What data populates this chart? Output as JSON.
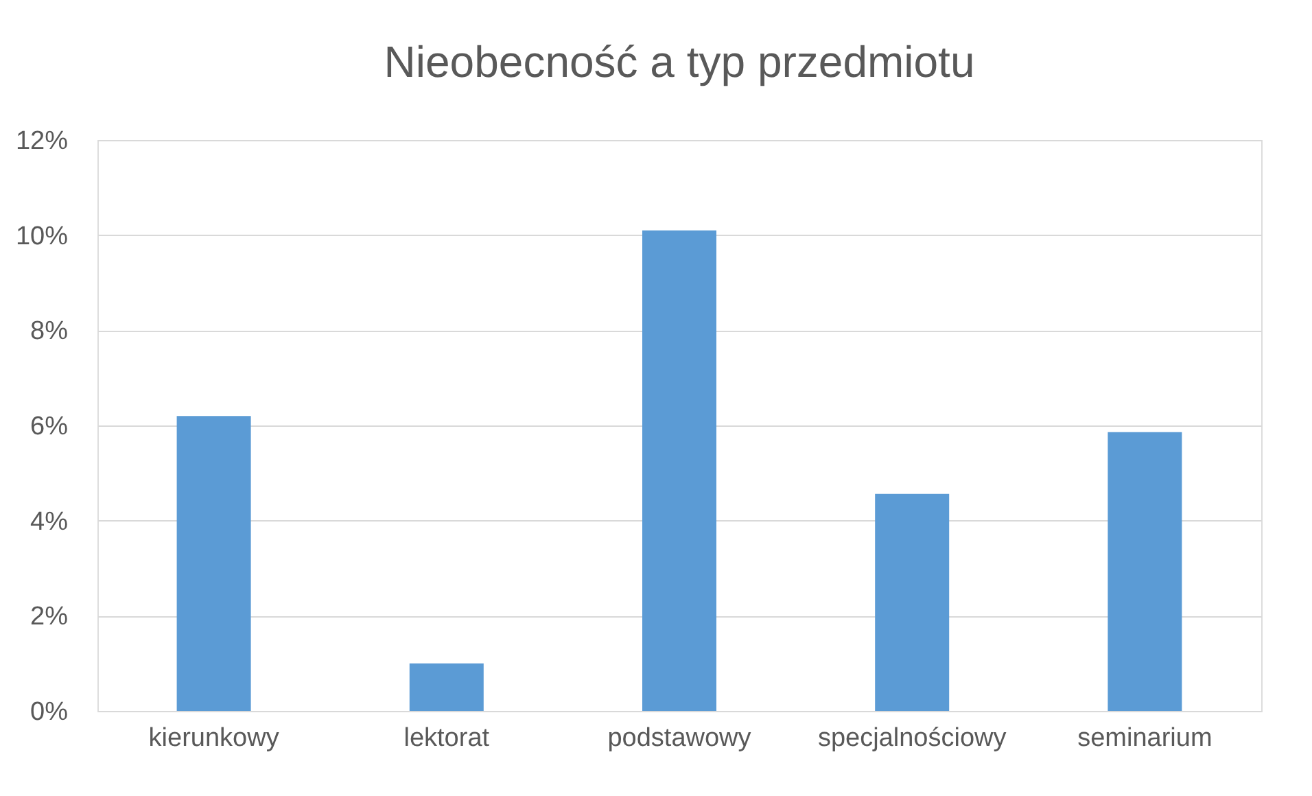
{
  "chart_data": {
    "type": "bar",
    "title": "Nieobecność a typ przedmiotu",
    "categories": [
      "kierunkowy",
      "lektorat",
      "podstawowy",
      "specjalnościowy",
      "seminarium"
    ],
    "values": [
      6.2,
      1.0,
      10.1,
      4.56,
      5.86
    ],
    "color": "#5b9bd5",
    "ylim": [
      0,
      12
    ],
    "yticks": [
      {
        "value": 0,
        "label": "0%"
      },
      {
        "value": 2,
        "label": "2%"
      },
      {
        "value": 4,
        "label": "4%"
      },
      {
        "value": 6,
        "label": "6%"
      },
      {
        "value": 8,
        "label": "8%"
      },
      {
        "value": 10,
        "label": "10%"
      },
      {
        "value": 12,
        "label": "12%"
      }
    ],
    "grid": "y"
  }
}
